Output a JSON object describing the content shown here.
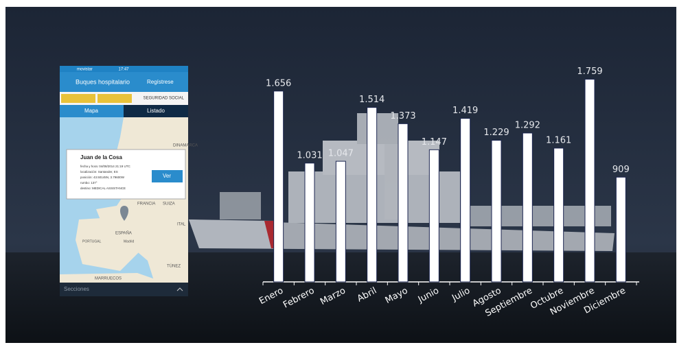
{
  "chart_data": {
    "type": "bar",
    "categories": [
      "Enero",
      "Febrero",
      "Marzo",
      "Abril",
      "Mayo",
      "Junio",
      "Julio",
      "Agosto",
      "Septiembre",
      "Octubre",
      "Noviembre",
      "Diciembre"
    ],
    "values": [
      1656,
      1031,
      1047,
      1514,
      1373,
      1147,
      1419,
      1229,
      1292,
      1161,
      1759,
      909
    ],
    "value_labels": [
      "1.656",
      "1.031",
      "1.047",
      "1.514",
      "1.373",
      "1.147",
      "1.419",
      "1.229",
      "1.292",
      "1.161",
      "1.759",
      "909"
    ],
    "color": "#ffffff",
    "ylim": [
      0,
      2000
    ]
  },
  "phone": {
    "carrier": "movistar",
    "time": "17:47",
    "header": "Buques hospitalario",
    "register": "Regístrese",
    "logo": "SEGURIDAD SOCIAL",
    "tabs": [
      "Mapa",
      "Listado"
    ],
    "popup": {
      "title": "Juan de la Cosa",
      "button": "Ver",
      "lines": [
        "fecha y hora: 04/08/2014 21:19 UTC",
        "localización: Santander, ES",
        "posición: 43.50145N, 3.79600W",
        "rumbo: 137°",
        "destino: MEDICAL ASSISTANCE"
      ]
    },
    "map_labels": [
      "DINAMARCA",
      "FRANCIA",
      "SUIZA",
      "ITAL",
      "ESPAÑA",
      "PORTUGAL",
      "Madrid",
      "TÚNEZ",
      "MARRUECOS"
    ],
    "footer": "Secciones"
  }
}
